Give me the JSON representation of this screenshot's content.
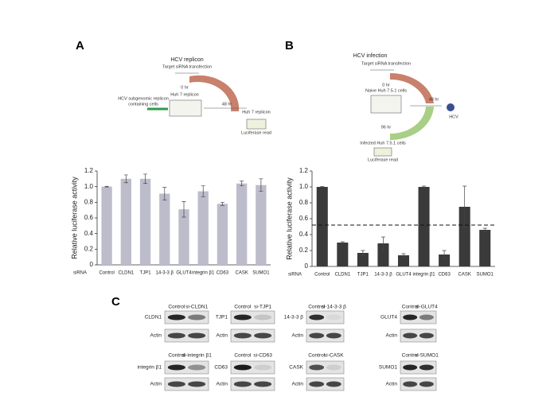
{
  "panel_labels": [
    "A",
    "B",
    "C"
  ],
  "diagrams": [
    {
      "title": "HCV replicon",
      "labels": [
        "Target siRNA transfection",
        "0 hr",
        "Huh 7 replicon",
        "HCV subgenomic replicon",
        "containing cells",
        "48 hr",
        "Huh 7 replicon",
        "Luciferase read"
      ]
    },
    {
      "title": "HCV infection",
      "labels": [
        "Target siRNA transfection",
        "0 hr",
        "Naive Huh 7.5.1 cells",
        "48 hr",
        "HCV",
        "96 hr",
        "Infected Huh 7.5.1 cells",
        "Luciferase read"
      ]
    }
  ],
  "chart_data": [
    {
      "type": "bar",
      "y_label": "Relative luciferase activity",
      "x_label": "siRNA",
      "categories": [
        "Control",
        "CLDN1",
        "TJP1",
        "14-3-3 β",
        "GLUT4",
        "integrin β1",
        "CD63",
        "CASK",
        "SUMO1"
      ],
      "values": [
        1.0,
        1.1,
        1.1,
        0.91,
        0.71,
        0.94,
        0.78,
        1.04,
        1.02
      ],
      "errors": [
        0.005,
        0.05,
        0.06,
        0.08,
        0.1,
        0.07,
        0.02,
        0.03,
        0.08
      ],
      "color": "#bdbccb",
      "ylim": [
        0,
        1.2
      ],
      "yticks": [
        0,
        0.2,
        0.4,
        0.6,
        0.8,
        {
          "value": 1,
          "label": "1.0"
        },
        1.2
      ]
    },
    {
      "type": "bar",
      "y_label": "Relative luciferase activity",
      "x_label": "siRNA",
      "categories": [
        "Control",
        "CLDN1",
        "TJP1",
        "14-3-3 β",
        "GLUT4",
        "integrin β1",
        "CD63",
        "CASK",
        "SUMO1"
      ],
      "values": [
        1.0,
        0.3,
        0.17,
        0.29,
        0.14,
        1.0,
        0.15,
        0.75,
        0.46
      ],
      "errors": [
        0.005,
        0.01,
        0.03,
        0.08,
        0.02,
        0.01,
        0.05,
        0.26,
        0.02
      ],
      "color": "#3a3a3a",
      "ylim": [
        0,
        1.2
      ],
      "yticks": [
        0,
        0.2,
        0.4,
        0.6,
        0.8,
        {
          "value": 1,
          "label": "1.0"
        },
        1.2
      ],
      "reference_line": 0.52
    }
  ],
  "blots": [
    {
      "lanes": [
        "Control",
        "si-CLDN1"
      ],
      "rows": [
        "CLDN1",
        "Actin"
      ]
    },
    {
      "lanes": [
        "Control",
        "si-TJP1"
      ],
      "rows": [
        "TJP1",
        "Actin"
      ]
    },
    {
      "lanes": [
        "Control",
        "si-14-3-3 β"
      ],
      "rows": [
        "14-3-3 β",
        "Actin"
      ]
    },
    {
      "lanes": [
        "Control",
        "si-GLUT4"
      ],
      "rows": [
        "GLUT4",
        "Actin"
      ]
    },
    {
      "lanes": [
        "Control",
        "si-integrin β1"
      ],
      "rows": [
        "integrin β1",
        "Actin"
      ]
    },
    {
      "lanes": [
        "Control",
        "si-CD63"
      ],
      "rows": [
        "CD63",
        "Actin"
      ]
    },
    {
      "lanes": [
        "Control",
        "si-CASK"
      ],
      "rows": [
        "CASK",
        "Actin"
      ]
    },
    {
      "lanes": [
        "Control",
        "si-SUMO1"
      ],
      "rows": [
        "SUMO1",
        "Actin"
      ]
    }
  ]
}
